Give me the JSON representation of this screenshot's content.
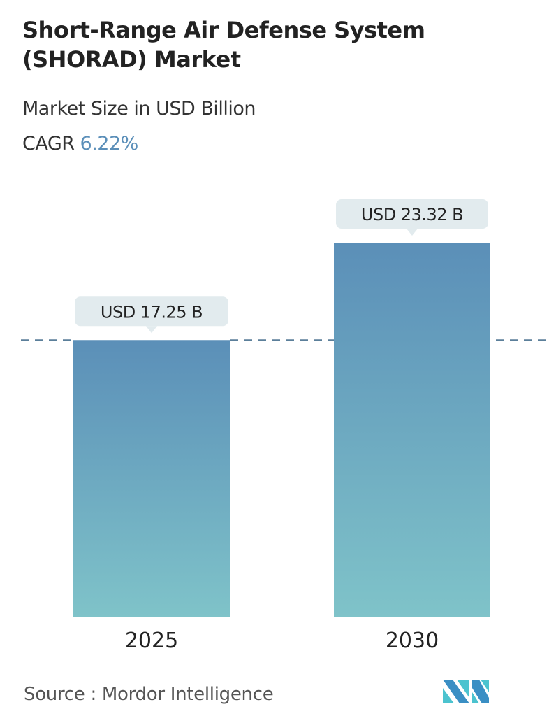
{
  "title": "Short-Range Air Defense System (SHORAD) Market",
  "subtitle": "Market Size in USD Billion",
  "cagr_label": "CAGR",
  "cagr_value": "6.22%",
  "source": "Source :  Mordor Intelligence",
  "logo_text": "MI",
  "colors": {
    "bar_top": "#5b8fb8",
    "bar_bottom": "#7fc3c9",
    "label_bg": "#e2ebee",
    "dash": "#5b7f9a",
    "cagr": "#5b8fb9"
  },
  "chart_data": {
    "type": "bar",
    "categories": [
      "2025",
      "2030"
    ],
    "values": [
      17.25,
      23.32
    ],
    "data_labels": [
      "USD 17.25 B",
      "USD 23.32 B"
    ],
    "ylabel": "",
    "xlabel": "",
    "ylim": [
      0,
      23.32
    ],
    "grid": false,
    "reference_line": 17.25
  }
}
